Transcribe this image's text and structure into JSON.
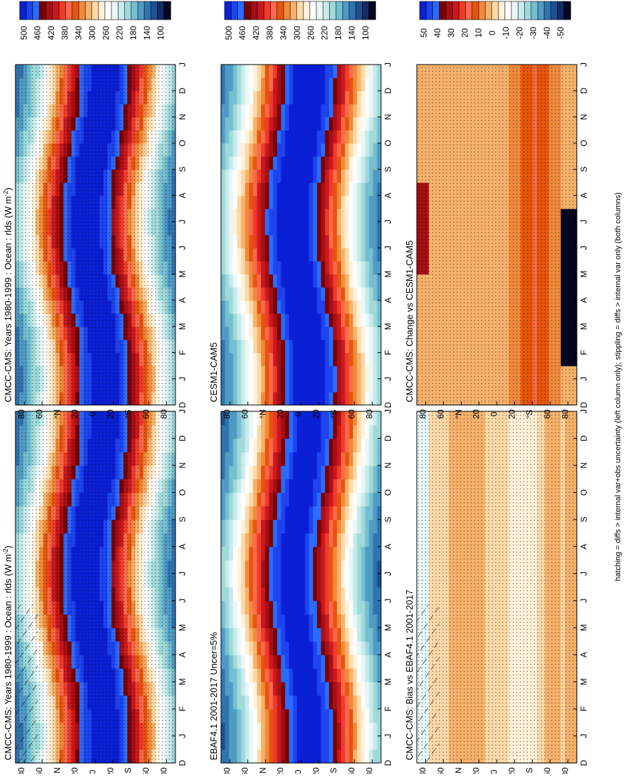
{
  "footnote": "hatching = diffs > internal var+obs uncertainty (left column only); stippling = diffs > internal var only (both columns)",
  "scales": {
    "abs": {
      "labels": [
        "500",
        "460",
        "420",
        "380",
        "340",
        "300",
        "260",
        "220",
        "180",
        "140",
        "100"
      ],
      "colors": [
        "#0b1fd4",
        "#1e44f0",
        "#2a6cff",
        "#7a0000",
        "#a50f15",
        "#cb181d",
        "#ef3b2c",
        "#fb6a4a",
        "#e6550d",
        "#f08a3a",
        "#f6b26b",
        "#fdd9a8",
        "#fff2d9",
        "#ffffff",
        "#e8f7f7",
        "#c7ebea",
        "#9fd9da",
        "#75bfd1",
        "#4f9bc4",
        "#2f74b0",
        "#1e4f91",
        "#142c66",
        "#050620"
      ]
    },
    "diff": {
      "labels": [
        "50",
        "40",
        "30",
        "20",
        "10",
        "0",
        "-10",
        "-20",
        "-30",
        "-40",
        "-50"
      ],
      "colors": [
        "#0b1fd4",
        "#1e44f0",
        "#2a6cff",
        "#7a0000",
        "#a50f15",
        "#cb181d",
        "#ef3b2c",
        "#fb6a4a",
        "#e6550d",
        "#f08a3a",
        "#f6b26b",
        "#fdd9a8",
        "#fff2d9",
        "#ffffff",
        "#e8f7f7",
        "#c7ebea",
        "#9fd9da",
        "#75bfd1",
        "#4f9bc4",
        "#2f74b0",
        "#1e4f91",
        "#142c66",
        "#050620"
      ]
    }
  },
  "axes": {
    "months": [
      "D",
      "J",
      "F",
      "M",
      "A",
      "M",
      "J",
      "J",
      "A",
      "S",
      "O",
      "N",
      "D",
      "J"
    ],
    "lat_labels": [
      "80",
      "60",
      "°N",
      "20",
      "0",
      "20",
      "°S",
      "60",
      "80"
    ]
  },
  "chart_data": [
    {
      "type": "heatmap",
      "title": "CMCC-CMS: Years 1980-1999 : Ocean : rlds (W m",
      "title_sup": "-2",
      "title_end": ")",
      "scale": "abs",
      "hatching": true,
      "stippling": true,
      "x": [
        "D",
        "J",
        "F",
        "M",
        "A",
        "M",
        "J",
        "J",
        "A",
        "S",
        "O",
        "N",
        "D",
        "J"
      ],
      "y": [
        "80",
        "60",
        "°N",
        "20",
        "0",
        "20",
        "°S",
        "60",
        "80"
      ]
    },
    {
      "type": "heatmap",
      "title": "EBAF4.1 2001-2017 Uncer=5%",
      "scale": "abs",
      "hatching": false,
      "stippling": false,
      "x": [
        "D",
        "J",
        "F",
        "M",
        "A",
        "M",
        "J",
        "J",
        "A",
        "S",
        "O",
        "N",
        "D",
        "J"
      ],
      "y": [
        "80",
        "60",
        "°N",
        "20",
        "0",
        "20",
        "°S",
        "60",
        "80"
      ]
    },
    {
      "type": "heatmap",
      "title": "CMCC-CMS: Bias vs EBAF4.1 2001-2017",
      "scale": "diff",
      "hatching": true,
      "stippling": true,
      "x": [
        "D",
        "J",
        "F",
        "M",
        "A",
        "M",
        "J",
        "J",
        "A",
        "S",
        "O",
        "N",
        "D",
        "J"
      ],
      "y": [
        "80",
        "60",
        "°N",
        "20",
        "0",
        "20",
        "°S",
        "60",
        "80"
      ]
    },
    {
      "type": "heatmap",
      "title": "CMCC-CMS: Years 1980-1999 : Ocean : rlds (W m",
      "title_sup": "-2",
      "title_end": ")",
      "scale": "abs",
      "hatching": false,
      "stippling": true,
      "x": [
        "D",
        "J",
        "F",
        "M",
        "A",
        "M",
        "J",
        "J",
        "A",
        "S",
        "O",
        "N",
        "D",
        "J"
      ],
      "y": [
        "80",
        "60",
        "°N",
        "20",
        "0",
        "20",
        "°S",
        "60",
        "80"
      ]
    },
    {
      "type": "heatmap",
      "title": "CESM1-CAM5",
      "scale": "abs",
      "hatching": false,
      "stippling": false,
      "x": [
        "D",
        "J",
        "F",
        "M",
        "A",
        "M",
        "J",
        "J",
        "A",
        "S",
        "O",
        "N",
        "D",
        "J"
      ],
      "y": [
        "80",
        "60",
        "°N",
        "20",
        "0",
        "20",
        "°S",
        "60",
        "80"
      ]
    },
    {
      "type": "heatmap",
      "title": "CMCC-CMS: Change vs CESM1-CAM5",
      "scale": "diff",
      "hatching": false,
      "stippling": true,
      "x": [
        "D",
        "J",
        "F",
        "M",
        "A",
        "M",
        "J",
        "J",
        "A",
        "S",
        "O",
        "N",
        "D",
        "J"
      ],
      "y": [
        "80",
        "60",
        "°N",
        "20",
        "0",
        "20",
        "°S",
        "60",
        "80"
      ]
    }
  ]
}
